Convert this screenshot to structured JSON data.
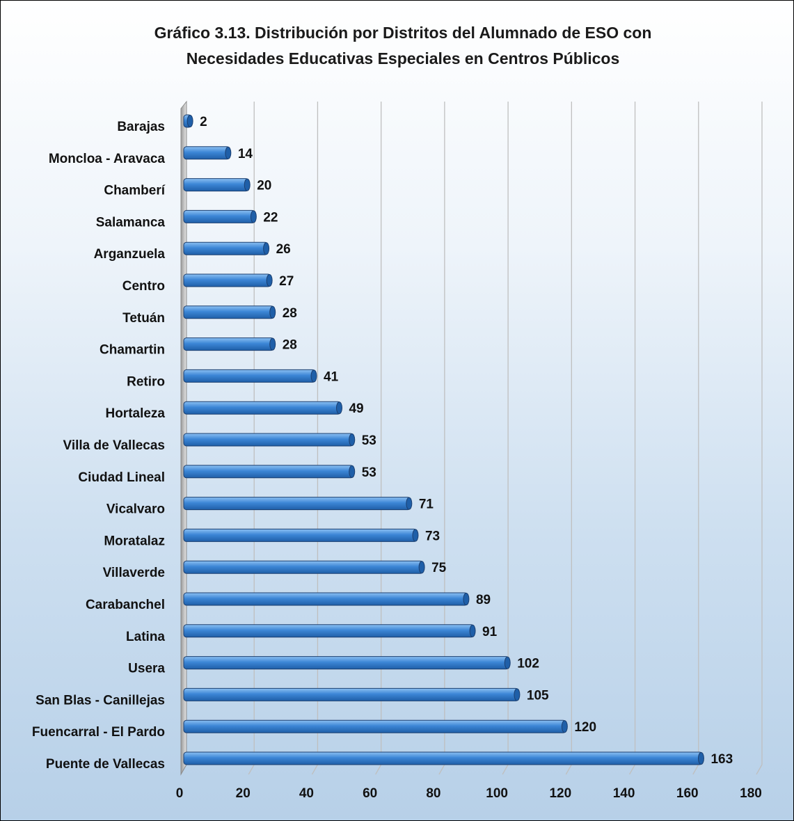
{
  "chart_data": {
    "type": "bar",
    "orientation": "horizontal",
    "title": "Gráfico 3.13. Distribución por Distritos del Alumnado de ESO con Necesidades Educativas Especiales en Centros Públicos",
    "title_lines": [
      "Gráfico 3.13. Distribución por Distritos del Alumnado de ESO con",
      "Necesidades Educativas Especiales en Centros Públicos"
    ],
    "categories": [
      "Barajas",
      "Moncloa - Aravaca",
      "Chamberí",
      "Salamanca",
      "Arganzuela",
      "Centro",
      "Tetuán",
      "Chamartin",
      "Retiro",
      "Hortaleza",
      "Villa de Vallecas",
      "Ciudad Lineal",
      "Vicalvaro",
      "Moratalaz",
      "Villaverde",
      "Carabanchel",
      "Latina",
      "Usera",
      "San Blas - Canillejas",
      "Fuencarral - El Pardo",
      "Puente de Vallecas"
    ],
    "values": [
      2,
      14,
      20,
      22,
      26,
      27,
      28,
      28,
      41,
      49,
      53,
      53,
      71,
      73,
      75,
      89,
      91,
      102,
      105,
      120,
      163
    ],
    "xlabel": "",
    "ylabel": "",
    "xlim": [
      0,
      180
    ],
    "xticks": [
      0,
      20,
      40,
      60,
      80,
      100,
      120,
      140,
      160,
      180
    ],
    "grid": true,
    "legend": "none",
    "colors": {
      "bar": "#3c86d6",
      "bar_light": "#8cc0f2",
      "bar_dark": "#1f5fa8",
      "bar_outline": "#1b3f70",
      "grid": "#bfbfbf",
      "text": "#111111"
    }
  }
}
